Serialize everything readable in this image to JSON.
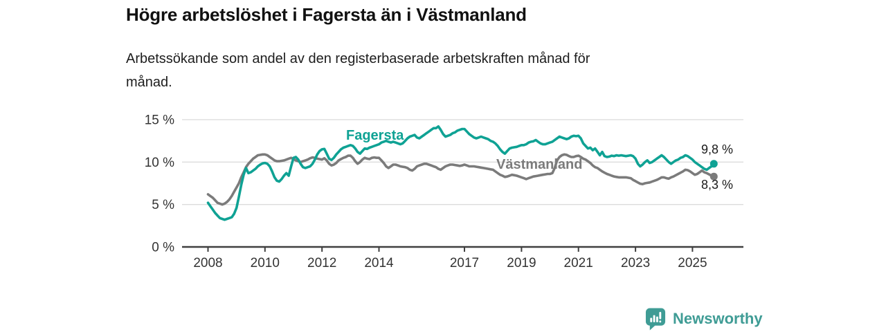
{
  "page": {
    "title": "Högre arbetslöshet i Fagersta än i Västmanland",
    "subtitle_line1": "Arbetssökande som andel av den registerbaserade arbetskraften månad för",
    "subtitle_line2": "månad."
  },
  "branding": {
    "wordmark": "Newsworthy",
    "icon": "bar-chart-speech-bubble-icon",
    "color": "#3F9C95"
  },
  "colors": {
    "fagersta": "#0FA294",
    "vastmanland": "#7B7B7B",
    "gridline": "#DBDBDB",
    "axis": "#3F3F3F",
    "tick_text": "#333333",
    "value_label": "#1A1A1A",
    "title_text": "#111111"
  },
  "chart_data": {
    "type": "line",
    "unit": "percent",
    "frequency": "monthly",
    "x_start": "2008-01",
    "x_end": "2025-10",
    "ylim": [
      0,
      15.5
    ],
    "grid": "horizontal",
    "legend_position": "inline-series-labels",
    "x_ticks": [
      {
        "label": "2008",
        "year": 2008
      },
      {
        "label": "2010",
        "year": 2010
      },
      {
        "label": "2012",
        "year": 2012
      },
      {
        "label": "2014",
        "year": 2014
      },
      {
        "label": "2017",
        "year": 2017
      },
      {
        "label": "2019",
        "year": 2019
      },
      {
        "label": "2021",
        "year": 2021
      },
      {
        "label": "2023",
        "year": 2023
      },
      {
        "label": "2025",
        "year": 2025
      }
    ],
    "y_ticks": [
      {
        "label": "0 %",
        "value": 0
      },
      {
        "label": "5 %",
        "value": 5
      },
      {
        "label": "10 %",
        "value": 10
      },
      {
        "label": "15 %",
        "value": 15
      }
    ],
    "series": [
      {
        "name": "Fagersta",
        "color": "#0FA294",
        "end_label": "9,8 %",
        "final_value": 9.8,
        "values": [
          5.2,
          4.8,
          4.4,
          4.0,
          3.7,
          3.4,
          3.3,
          3.2,
          3.3,
          3.4,
          3.5,
          3.9,
          4.6,
          5.9,
          7.3,
          8.5,
          9.3,
          8.7,
          8.8,
          9.0,
          9.2,
          9.5,
          9.7,
          9.85,
          9.9,
          9.8,
          9.5,
          8.9,
          8.2,
          7.8,
          7.7,
          8.0,
          8.4,
          8.7,
          8.4,
          9.5,
          10.5,
          10.6,
          10.3,
          9.8,
          9.4,
          9.3,
          9.4,
          9.5,
          9.8,
          10.3,
          10.9,
          11.3,
          11.5,
          11.55,
          11.0,
          10.4,
          10.25,
          10.5,
          10.9,
          11.2,
          11.5,
          11.7,
          11.8,
          11.9,
          12.0,
          11.9,
          11.6,
          11.2,
          11.0,
          11.3,
          11.6,
          11.55,
          11.7,
          11.8,
          11.9,
          12.0,
          12.1,
          12.3,
          12.4,
          12.5,
          12.4,
          12.3,
          12.4,
          12.3,
          12.2,
          12.1,
          12.2,
          12.5,
          12.8,
          13.0,
          13.1,
          13.2,
          12.9,
          12.8,
          13.0,
          13.2,
          13.4,
          13.6,
          13.8,
          14.0,
          14.0,
          14.2,
          13.8,
          13.3,
          13.0,
          13.1,
          13.2,
          13.4,
          13.5,
          13.7,
          13.8,
          13.9,
          13.9,
          13.6,
          13.3,
          13.1,
          12.9,
          12.8,
          12.9,
          13.0,
          12.9,
          12.8,
          12.7,
          12.5,
          12.4,
          12.2,
          11.9,
          11.5,
          11.2,
          11.0,
          11.3,
          11.6,
          11.7,
          11.75,
          11.8,
          11.9,
          12.0,
          12.0,
          12.1,
          12.3,
          12.4,
          12.45,
          12.6,
          12.4,
          12.2,
          12.1,
          12.1,
          12.2,
          12.3,
          12.4,
          12.6,
          12.8,
          13.0,
          12.9,
          12.8,
          12.7,
          12.8,
          13.0,
          13.1,
          13.05,
          13.1,
          12.8,
          12.2,
          11.9,
          11.6,
          11.7,
          11.4,
          11.6,
          11.2,
          10.8,
          11.2,
          10.7,
          10.6,
          10.65,
          10.75,
          10.7,
          10.8,
          10.75,
          10.8,
          10.75,
          10.7,
          10.75,
          10.8,
          10.7,
          10.4,
          9.8,
          9.5,
          9.7,
          10.0,
          10.2,
          9.9,
          10.0,
          10.2,
          10.4,
          10.6,
          10.8,
          10.6,
          10.3,
          10.0,
          9.8,
          10.0,
          10.2,
          10.3,
          10.5,
          10.6,
          10.8,
          10.7,
          10.5,
          10.3,
          10.0,
          9.8,
          9.6,
          9.4,
          9.2,
          9.1,
          9.3,
          9.5,
          9.8
        ]
      },
      {
        "name": "Västmanland",
        "color": "#7B7B7B",
        "end_label": "8,3 %",
        "final_value": 8.3,
        "values": [
          6.2,
          6.0,
          5.8,
          5.5,
          5.2,
          5.1,
          5.0,
          5.1,
          5.3,
          5.6,
          6.0,
          6.5,
          7.0,
          7.5,
          8.2,
          8.8,
          9.4,
          9.8,
          10.1,
          10.4,
          10.6,
          10.8,
          10.85,
          10.9,
          10.9,
          10.8,
          10.6,
          10.4,
          10.2,
          10.1,
          10.1,
          10.15,
          10.2,
          10.3,
          10.4,
          10.5,
          10.35,
          10.2,
          10.1,
          10.0,
          10.1,
          10.2,
          10.3,
          10.45,
          10.55,
          10.5,
          10.4,
          10.35,
          10.3,
          10.45,
          10.2,
          9.8,
          9.6,
          9.7,
          9.9,
          10.2,
          10.35,
          10.5,
          10.6,
          10.75,
          10.75,
          10.5,
          10.1,
          9.8,
          10.0,
          10.3,
          10.5,
          10.4,
          10.35,
          10.5,
          10.55,
          10.5,
          10.5,
          10.2,
          9.9,
          9.5,
          9.3,
          9.5,
          9.7,
          9.7,
          9.6,
          9.5,
          9.45,
          9.4,
          9.3,
          9.1,
          9.0,
          9.2,
          9.5,
          9.6,
          9.7,
          9.8,
          9.8,
          9.7,
          9.6,
          9.5,
          9.4,
          9.2,
          9.1,
          9.3,
          9.5,
          9.6,
          9.7,
          9.7,
          9.65,
          9.6,
          9.55,
          9.6,
          9.7,
          9.6,
          9.5,
          9.5,
          9.5,
          9.45,
          9.4,
          9.35,
          9.3,
          9.25,
          9.2,
          9.15,
          9.1,
          8.9,
          8.7,
          8.5,
          8.4,
          8.25,
          8.3,
          8.4,
          8.5,
          8.45,
          8.4,
          8.3,
          8.2,
          8.1,
          8.0,
          8.1,
          8.2,
          8.3,
          8.35,
          8.4,
          8.45,
          8.5,
          8.55,
          8.6,
          8.6,
          8.7,
          9.3,
          10.2,
          10.6,
          10.8,
          10.9,
          10.85,
          10.7,
          10.6,
          10.6,
          10.7,
          10.75,
          10.6,
          10.4,
          10.3,
          10.1,
          9.9,
          9.6,
          9.4,
          9.3,
          9.1,
          8.9,
          8.75,
          8.6,
          8.5,
          8.4,
          8.3,
          8.25,
          8.2,
          8.2,
          8.2,
          8.2,
          8.15,
          8.1,
          7.9,
          7.75,
          7.6,
          7.45,
          7.4,
          7.5,
          7.55,
          7.6,
          7.7,
          7.8,
          7.9,
          8.05,
          8.2,
          8.2,
          8.1,
          8.05,
          8.2,
          8.3,
          8.45,
          8.6,
          8.75,
          8.9,
          9.1,
          9.05,
          8.9,
          8.7,
          8.5,
          8.6,
          8.8,
          9.0,
          8.8,
          8.7,
          8.55,
          8.4,
          8.3
        ]
      }
    ]
  }
}
